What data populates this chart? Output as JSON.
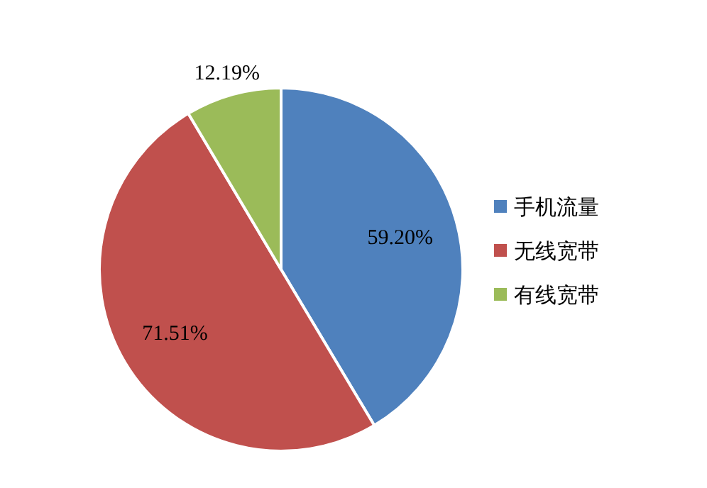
{
  "chart_data": {
    "type": "pie",
    "categories": [
      "手机流量",
      "无线宽带",
      "有线宽带"
    ],
    "values": [
      59.2,
      71.51,
      12.19
    ],
    "value_labels": [
      "59.20%",
      "71.51%",
      "12.19%"
    ],
    "colors": [
      "#4f81bd",
      "#c0504d",
      "#9bbb59"
    ],
    "legend": "right"
  }
}
